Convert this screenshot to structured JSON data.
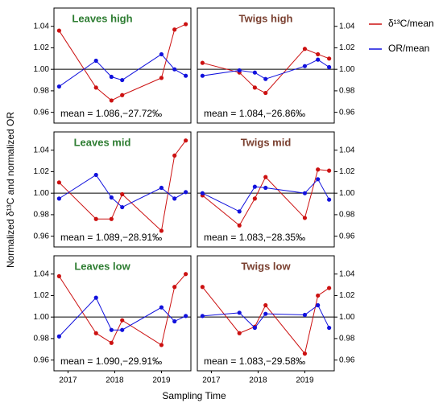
{
  "ylabel": "Normalized δ¹³C and normalized OR",
  "xlabel": "Sampling Time",
  "chart_data": [
    {
      "type": "line",
      "title": "Leaves high",
      "annotation": "mean = 1.086,−27.72‰",
      "x": [
        2017.31,
        2018.1,
        2018.43,
        2018.66,
        2019.5,
        2019.78,
        2020.02
      ],
      "series": [
        {
          "name": "δ¹³C/mean",
          "color": "#cc1111",
          "values": [
            1.036,
            0.983,
            0.971,
            0.976,
            0.992,
            1.037,
            1.042
          ]
        },
        {
          "name": "OR/mean",
          "color": "#1111dd",
          "values": [
            0.984,
            1.008,
            0.993,
            0.99,
            1.014,
            1.0,
            0.994
          ]
        }
      ],
      "xlim": [
        2017.2,
        2020.13
      ],
      "ylim": [
        0.95,
        1.057
      ],
      "yticks": [
        0.96,
        0.98,
        {
          "value": 1,
          "label": "1.00"
        },
        1.02,
        1.04
      ],
      "hline": 1
    },
    {
      "type": "line",
      "title": "Twigs high",
      "annotation": "mean = 1.084,−26.86‰",
      "x": [
        2017.31,
        2018.1,
        2018.43,
        2018.66,
        2019.5,
        2019.78,
        2020.02
      ],
      "series": [
        {
          "name": "δ¹³C/mean",
          "color": "#cc1111",
          "values": [
            1.006,
            0.997,
            0.983,
            0.978,
            1.019,
            1.014,
            1.01
          ]
        },
        {
          "name": "OR/mean",
          "color": "#1111dd",
          "values": [
            0.994,
            0.999,
            0.997,
            0.991,
            1.003,
            1.009,
            1.002
          ]
        }
      ],
      "xlim": [
        2017.2,
        2020.13
      ],
      "ylim": [
        0.95,
        1.057
      ],
      "yticks": [
        0.96,
        0.98,
        {
          "value": 1,
          "label": "1.00"
        },
        1.02,
        1.04
      ],
      "hline": 1
    },
    {
      "type": "line",
      "title": "Leaves mid",
      "annotation": "mean = 1.089,−28.91‰",
      "x": [
        2017.31,
        2018.1,
        2018.43,
        2018.66,
        2019.5,
        2019.78,
        2020.02
      ],
      "series": [
        {
          "name": "δ¹³C/mean",
          "color": "#cc1111",
          "values": [
            1.01,
            0.976,
            0.976,
            0.999,
            0.965,
            1.035,
            1.049
          ]
        },
        {
          "name": "OR/mean",
          "color": "#1111dd",
          "values": [
            0.995,
            1.017,
            0.996,
            0.987,
            1.005,
            0.995,
            1.001
          ]
        }
      ],
      "xlim": [
        2017.2,
        2020.13
      ],
      "ylim": [
        0.95,
        1.057
      ],
      "yticks": [
        0.96,
        0.98,
        {
          "value": 1,
          "label": "1.00"
        },
        1.02,
        1.04
      ],
      "hline": 1
    },
    {
      "type": "line",
      "title": "Twigs mid",
      "annotation": "mean = 1.083,−28.35‰",
      "x": [
        2017.31,
        2018.1,
        2018.43,
        2018.66,
        2019.5,
        2019.78,
        2020.02
      ],
      "series": [
        {
          "name": "δ¹³C/mean",
          "color": "#cc1111",
          "values": [
            0.998,
            0.97,
            0.995,
            1.015,
            0.977,
            1.022,
            1.021
          ]
        },
        {
          "name": "OR/mean",
          "color": "#1111dd",
          "values": [
            1.0,
            0.983,
            1.006,
            1.005,
            1.0,
            1.013,
            0.994
          ]
        }
      ],
      "xlim": [
        2017.2,
        2020.13
      ],
      "ylim": [
        0.95,
        1.057
      ],
      "yticks": [
        0.96,
        0.98,
        {
          "value": 1,
          "label": "1.00"
        },
        1.02,
        1.04
      ],
      "hline": 1
    },
    {
      "type": "line",
      "title": "Leaves low",
      "annotation": "mean = 1.090,−29.91‰",
      "x": [
        2017.31,
        2018.1,
        2018.43,
        2018.66,
        2019.5,
        2019.78,
        2020.02
      ],
      "series": [
        {
          "name": "δ¹³C/mean",
          "color": "#cc1111",
          "values": [
            1.038,
            0.985,
            0.976,
            0.997,
            0.974,
            1.028,
            1.04
          ]
        },
        {
          "name": "OR/mean",
          "color": "#1111dd",
          "values": [
            0.982,
            1.018,
            0.988,
            0.988,
            1.009,
            0.996,
            1.001
          ]
        }
      ],
      "xlim": [
        2017.2,
        2020.13
      ],
      "xticks": [
        {
          "value": 2017.5,
          "label": "2017"
        },
        {
          "value": 2018.5,
          "label": "2018"
        },
        {
          "value": 2019.5,
          "label": "2019"
        }
      ],
      "ylim": [
        0.95,
        1.057
      ],
      "yticks": [
        0.96,
        0.98,
        {
          "value": 1,
          "label": "1.00"
        },
        1.02,
        1.04
      ],
      "hline": 1
    },
    {
      "type": "line",
      "title": "Twigs low",
      "annotation": "mean = 1.083,−29.58‰",
      "x": [
        2017.31,
        2018.1,
        2018.43,
        2018.66,
        2019.5,
        2019.78,
        2020.02
      ],
      "series": [
        {
          "name": "δ¹³C/mean",
          "color": "#cc1111",
          "values": [
            1.028,
            0.985,
            0.991,
            1.011,
            0.966,
            1.02,
            1.027
          ]
        },
        {
          "name": "OR/mean",
          "color": "#1111dd",
          "values": [
            1.001,
            1.004,
            0.99,
            1.003,
            1.002,
            1.011,
            0.99
          ]
        }
      ],
      "xlim": [
        2017.2,
        2020.13
      ],
      "xticks": [
        {
          "value": 2017.5,
          "label": "2017"
        },
        {
          "value": 2018.5,
          "label": "2018"
        },
        {
          "value": 2019.5,
          "label": "2019"
        }
      ],
      "ylim": [
        0.95,
        1.057
      ],
      "yticks": [
        0.96,
        0.98,
        {
          "value": 1,
          "label": "1.00"
        },
        1.02,
        1.04
      ],
      "hline": 1
    }
  ]
}
